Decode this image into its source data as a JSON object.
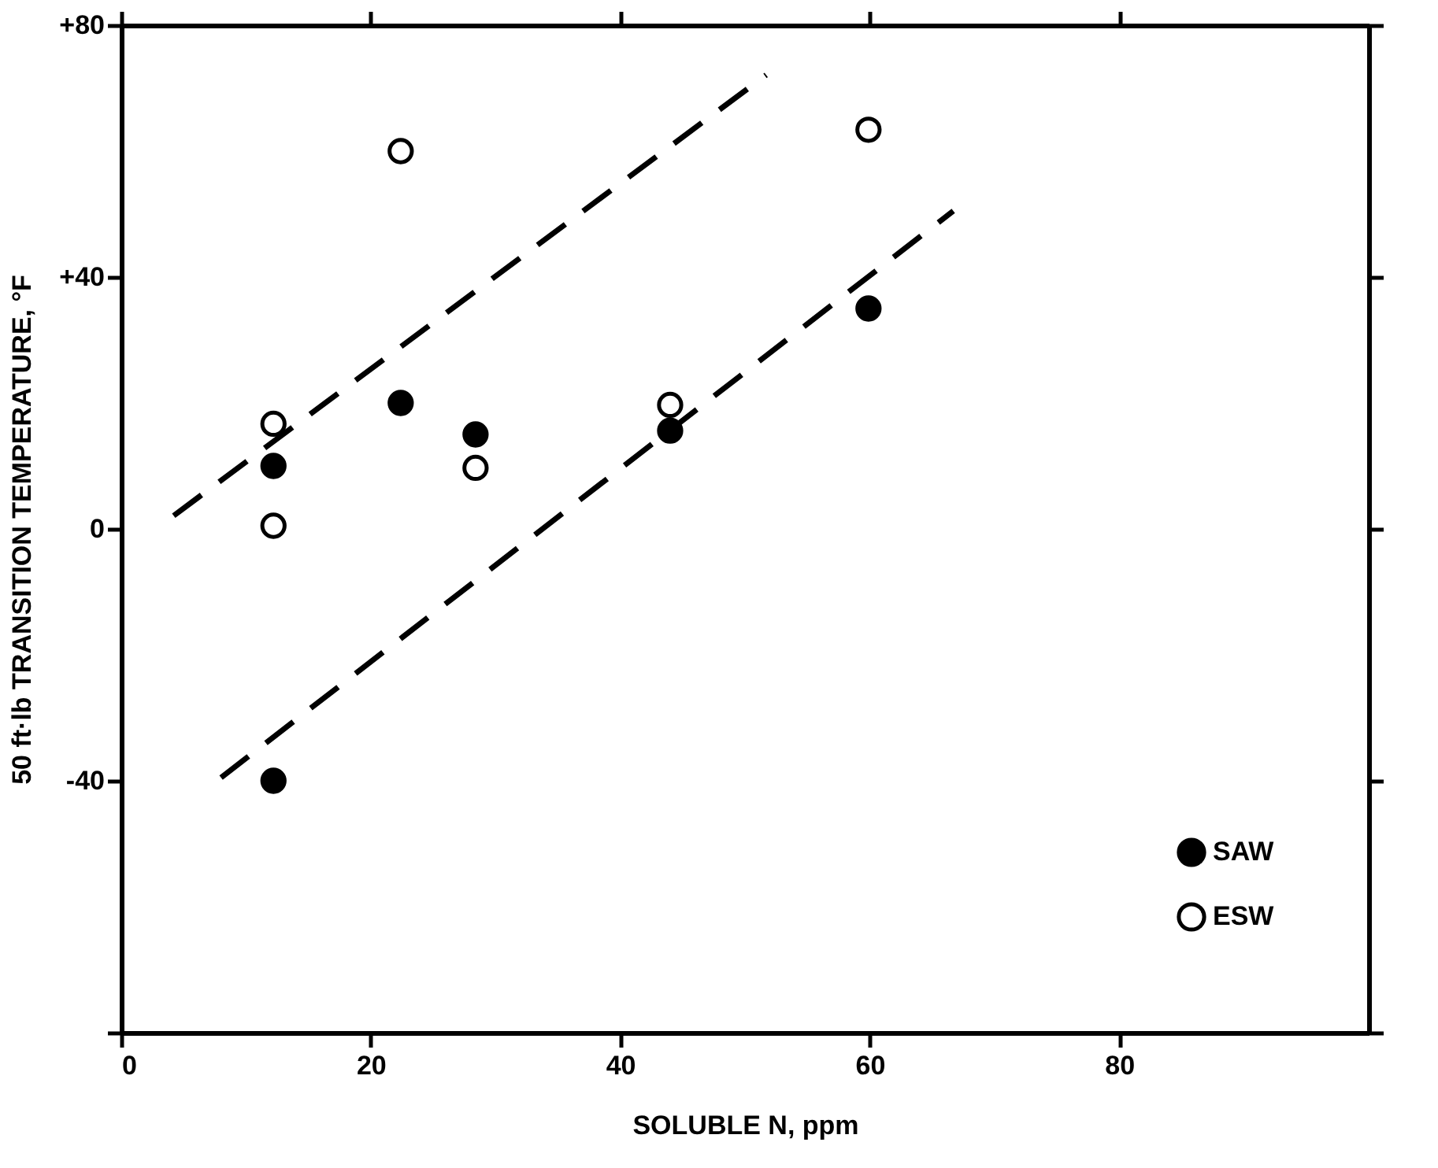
{
  "chart_data": {
    "type": "scatter",
    "xlabel": "SOLUBLE N, ppm",
    "ylabel": "50 ft·lb TRANSITION TEMPERATURE, °F",
    "xlim": [
      0,
      100
    ],
    "xticks": [
      0,
      20,
      40,
      60,
      80
    ],
    "ylim": [
      -80,
      80
    ],
    "yticks": [
      {
        "value": 80,
        "label": "+80"
      },
      {
        "value": 40,
        "label": "+40"
      },
      0,
      -40,
      {
        "value": -80,
        "label": null
      }
    ],
    "legend": "bottom right",
    "grid": false,
    "series": [
      {
        "name": "SAW",
        "color": "#000000",
        "marker": "circle",
        "x": [
          12.2,
          12.2,
          22.4,
          28.4,
          44,
          59.9
        ],
        "values": [
          10,
          -40,
          20,
          15,
          15.6,
          35
        ]
      },
      {
        "name": "ESW",
        "color": "#ffffff",
        "marker": "circle",
        "x": [
          12.2,
          12.2,
          22.4,
          28.4,
          44,
          59.9
        ],
        "values": [
          16.7,
          0.5,
          60,
          9.7,
          19.7,
          63.4
        ]
      },
      {
        "type": "line",
        "line_style": "dashed",
        "marker": "none",
        "color": "#000000",
        "x": [
          4.2,
          51.7
        ],
        "values": [
          2.1,
          72.1
        ]
      },
      {
        "type": "line",
        "line_style": "dashed",
        "marker": "none",
        "color": "#000000",
        "x": [
          8,
          66.7
        ],
        "values": [
          -39.5,
          50.5
        ]
      }
    ]
  }
}
